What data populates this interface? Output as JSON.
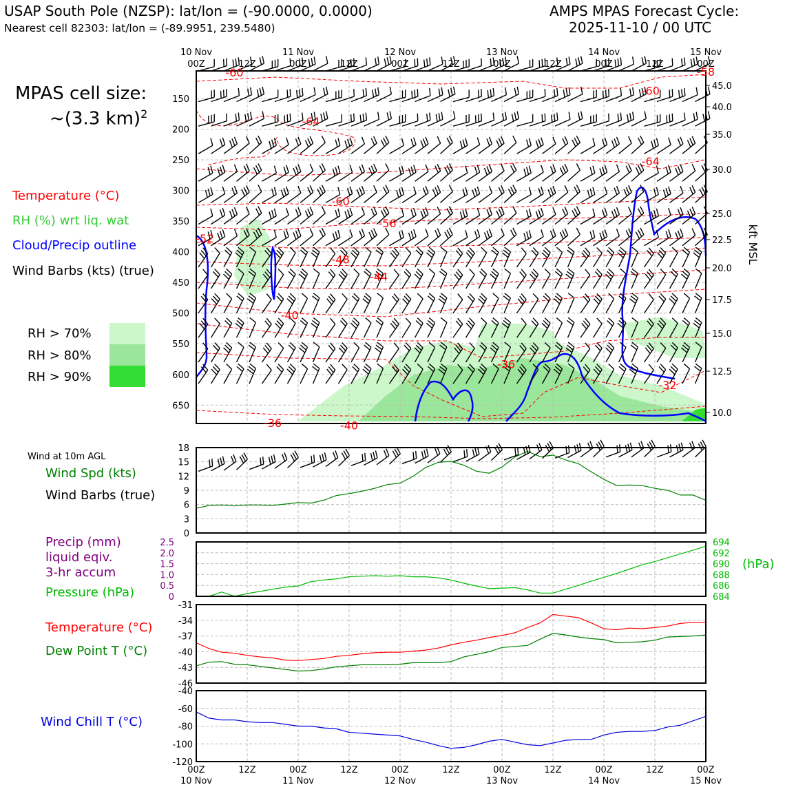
{
  "header": {
    "title": "USAP South Pole (NZSP): lat/lon = (-90.0000, 0.0000)",
    "subtitle": "Nearest cell 82303: lat/lon = (-89.9951, 239.5480)",
    "cycle_line1": "AMPS MPAS Forecast Cycle:",
    "cycle_line2": "2025-11-10 / 00 UTC",
    "cell_size_label": "MPAS cell size:",
    "cell_size_value": "~(3.3 km)",
    "cell_size_exp": "2"
  },
  "legend": {
    "temperature": "Temperature (°C)",
    "rh": "RH (%) wrt liq. wat",
    "cloud": "Cloud/Precip outline",
    "barbs": "Wind Barbs (kts) (true)",
    "rh_levels": [
      {
        "label": "RH > 70%",
        "color": "#cbf7cb"
      },
      {
        "label": "RH > 80%",
        "color": "#9ae69a"
      },
      {
        "label": "RH > 90%",
        "color": "#33dd33"
      }
    ]
  },
  "colors": {
    "temperature": "#ff0000",
    "rh_label": "#33cc33",
    "cloud": "#0000ff",
    "wind_speed": "#008000",
    "precip": "#800080",
    "pressure": "#00bb00",
    "dewpoint": "#008000",
    "windchill": "#0000dd"
  },
  "chart_data": [
    {
      "type": "area",
      "name": "time-height cross section",
      "x_ticks_top": [
        "00Z",
        "12Z",
        "00Z",
        "12Z",
        "00Z",
        "12Z",
        "00Z",
        "12Z",
        "00Z",
        "12Z",
        "00Z"
      ],
      "x_dates_top": [
        "10 Nov",
        "",
        "11 Nov",
        "",
        "12 Nov",
        "",
        "13 Nov",
        "",
        "14 Nov",
        "",
        "15 Nov"
      ],
      "y_left_ticks": [
        150,
        200,
        250,
        300,
        350,
        400,
        450,
        500,
        550,
        600,
        650
      ],
      "y_right_ticks": [
        "45.0",
        "40.0",
        "35.0",
        "30.0",
        "25.0",
        "22.5",
        "20.0",
        "17.5",
        "15.0",
        "12.5",
        "10.0"
      ],
      "y_right_values": [
        45,
        40,
        35,
        30,
        25,
        22.5,
        20,
        17.5,
        15,
        12.5,
        10
      ],
      "y_right_label": "kft MSL",
      "ylim_hpa": [
        105,
        680
      ],
      "temperature_contour_labels": [
        {
          "value": "-60",
          "t": 9,
          "p": 107
        },
        {
          "value": "-60",
          "t": 107,
          "p": 137
        },
        {
          "value": "-58",
          "t": 120,
          "p": 106
        },
        {
          "value": "-64",
          "t": 27,
          "p": 187
        },
        {
          "value": "-64",
          "t": 107,
          "p": 252
        },
        {
          "value": "-60",
          "t": 34,
          "p": 317
        },
        {
          "value": "-56",
          "t": 45,
          "p": 353
        },
        {
          "value": "-52",
          "t": 2,
          "p": 378
        },
        {
          "value": "-48",
          "t": 34,
          "p": 412
        },
        {
          "value": "-44",
          "t": 43,
          "p": 440
        },
        {
          "value": "-40",
          "t": 22,
          "p": 503
        },
        {
          "value": "-36",
          "t": 73,
          "p": 583
        },
        {
          "value": "-32",
          "t": 111,
          "p": 617
        },
        {
          "value": "-36",
          "t": 18,
          "p": 679
        },
        {
          "value": "-40",
          "t": 36,
          "p": 683
        }
      ]
    },
    {
      "type": "line",
      "name": "wind at 10m",
      "title": "Wind at 10m AGL",
      "series": [
        {
          "name": "Wind Spd (kts)",
          "values": [
            5.2,
            5.8,
            5.9,
            5.7,
            5.9,
            5.9,
            5.8,
            6.1,
            6.4,
            6.3,
            6.9,
            7.9,
            8.3,
            8.8,
            9.4,
            10.2,
            10.5,
            11.9,
            13.8,
            14.9,
            15.1,
            14.3,
            13.0,
            12.6,
            13.9,
            16.0,
            17.2,
            16.1,
            16.4,
            15.4,
            14.6,
            12.9,
            11.3,
            10.0,
            10.1,
            10.0,
            9.4,
            9.0,
            8.0,
            8.0,
            6.9
          ]
        }
      ],
      "barbs_label": "Wind Barbs (true)",
      "ylim": [
        0,
        18
      ],
      "yticks": [
        0,
        3,
        6,
        9,
        12,
        15,
        18
      ]
    },
    {
      "type": "line",
      "name": "precip and pressure",
      "series": [
        {
          "name": "Precip (mm) liquid eqiv. 3-hr accum",
          "values": [
            0,
            0,
            0,
            0,
            0,
            0,
            0,
            0,
            0,
            0,
            0,
            0,
            0,
            0,
            0,
            0,
            0,
            0,
            0,
            0,
            0,
            0,
            0,
            0,
            0,
            0,
            0,
            0,
            0,
            0,
            0,
            0,
            0,
            0,
            0,
            0,
            0,
            0,
            0,
            0,
            0
          ]
        },
        {
          "name": "Pressure (hPa)",
          "values": [
            684.0,
            684.0,
            684.8,
            684.0,
            684.5,
            684.9,
            685.3,
            685.7,
            685.9,
            686.7,
            687.0,
            687.2,
            687.6,
            687.7,
            687.8,
            687.7,
            687.8,
            687.6,
            687.6,
            687.4,
            687.0,
            686.4,
            685.9,
            685.4,
            685.5,
            685.6,
            685.2,
            684.6,
            684.6,
            685.3,
            686.0,
            686.8,
            687.5,
            688.2,
            689.0,
            689.8,
            690.4,
            691.1,
            691.8,
            692.5,
            693.2
          ]
        }
      ],
      "precip_label_1": "Precip (mm)",
      "precip_label_2": "liquid eqiv.",
      "precip_label_3": "3-hr accum",
      "pressure_label": "Pressure (hPa)",
      "right_axis_label": "(hPa)",
      "precip_ylim": [
        0,
        2.5
      ],
      "precip_yticks": [
        "0",
        "0.5",
        "1.0",
        "1.5",
        "2.0",
        "2.5"
      ],
      "pressure_ylim": [
        684,
        694
      ],
      "pressure_yticks": [
        "684",
        "686",
        "688",
        "690",
        "692",
        "694"
      ]
    },
    {
      "type": "line",
      "name": "temperature and dew point",
      "series": [
        {
          "name": "Temperature (°C)",
          "values": [
            -38.3,
            -39.4,
            -40.1,
            -40.3,
            -40.7,
            -41.0,
            -41.2,
            -41.6,
            -41.7,
            -41.5,
            -41.3,
            -40.9,
            -40.7,
            -40.4,
            -40.2,
            -40.1,
            -40.1,
            -39.9,
            -39.7,
            -39.3,
            -38.7,
            -38.2,
            -37.8,
            -37.3,
            -36.9,
            -36.4,
            -35.4,
            -34.5,
            -32.9,
            -33.2,
            -33.5,
            -34.5,
            -35.6,
            -35.8,
            -35.5,
            -35.6,
            -35.4,
            -35.1,
            -34.6,
            -34.4,
            -34.4
          ]
        },
        {
          "name": "Dew Point T (°C)",
          "values": [
            -42.7,
            -42.0,
            -41.9,
            -42.4,
            -42.5,
            -42.8,
            -43.1,
            -43.4,
            -43.7,
            -43.6,
            -43.3,
            -42.9,
            -42.7,
            -42.5,
            -42.5,
            -42.5,
            -42.4,
            -42.1,
            -42.1,
            -42.1,
            -41.9,
            -41.0,
            -40.5,
            -40.0,
            -39.2,
            -39.0,
            -38.8,
            -37.6,
            -36.5,
            -36.8,
            -37.2,
            -37.5,
            -37.7,
            -38.3,
            -38.2,
            -38.1,
            -37.8,
            -37.2,
            -37.1,
            -37.0,
            -36.8
          ]
        }
      ],
      "temp_label": "Temperature (°C)",
      "dew_label": "Dew Point T (°C)",
      "ylim": [
        -46,
        -31
      ],
      "yticks": [
        "-46",
        "-43",
        "-40",
        "-37",
        "-34",
        "-31"
      ]
    },
    {
      "type": "line",
      "name": "wind chill",
      "series": [
        {
          "name": "Wind Chill T (°C)",
          "values": [
            -64,
            -71,
            -73,
            -73,
            -75,
            -76,
            -76,
            -78,
            -80,
            -80,
            -82,
            -83,
            -87,
            -88,
            -89,
            -90,
            -91,
            -95,
            -98,
            -102,
            -105,
            -104,
            -101,
            -97,
            -95,
            -98,
            -101,
            -102,
            -99,
            -96,
            -95,
            -95,
            -90,
            -87,
            -86,
            -86,
            -85,
            -81,
            -79,
            -74,
            -69
          ]
        }
      ],
      "label": "Wind Chill T (°C)",
      "ylim": [
        -120,
        -40
      ],
      "yticks": [
        "-120",
        "-100",
        "-80",
        "-60",
        "-40"
      ]
    }
  ],
  "x_axis_bottom": {
    "ticks": [
      "00Z",
      "12Z",
      "00Z",
      "12Z",
      "00Z",
      "12Z",
      "00Z",
      "12Z",
      "00Z",
      "12Z",
      "00Z"
    ],
    "dates": [
      "10 Nov",
      "",
      "11 Nov",
      "",
      "12 Nov",
      "",
      "13 Nov",
      "",
      "14 Nov",
      "",
      "15 Nov"
    ]
  }
}
